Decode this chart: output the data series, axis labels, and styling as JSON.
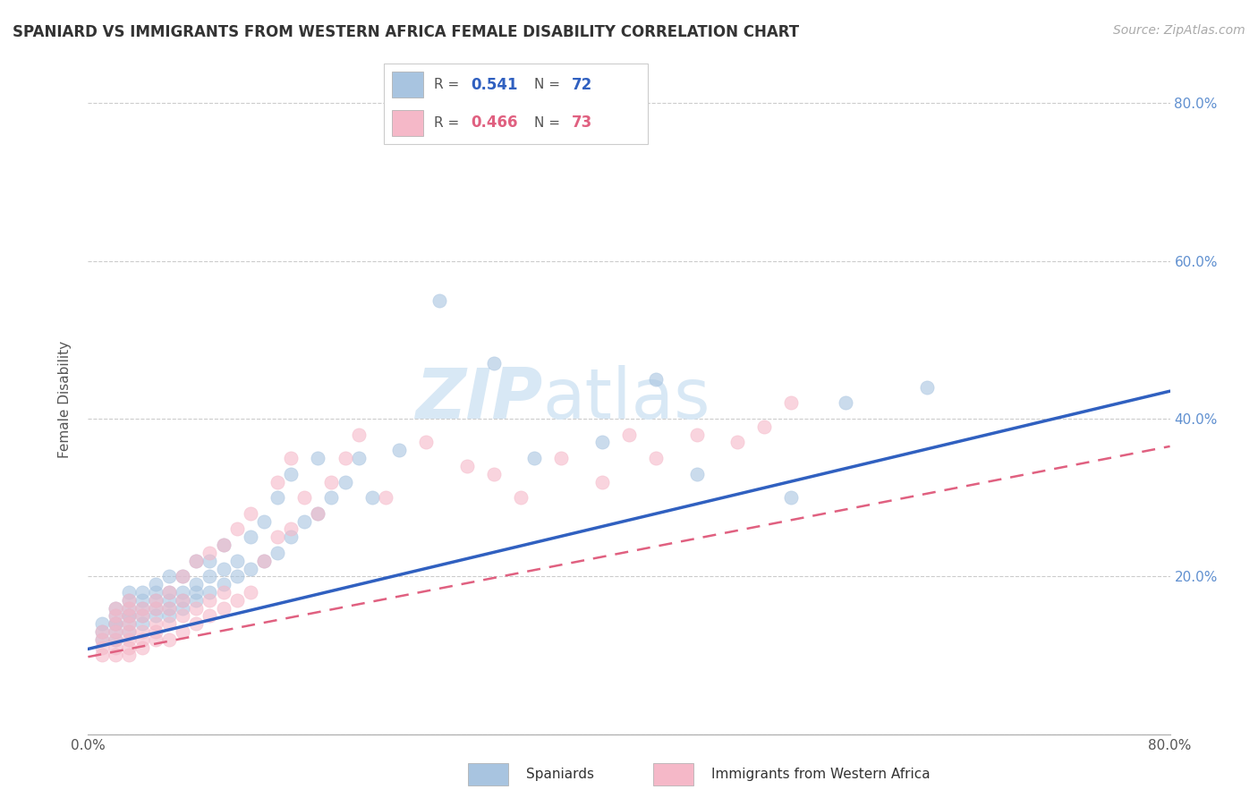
{
  "title": "SPANIARD VS IMMIGRANTS FROM WESTERN AFRICA FEMALE DISABILITY CORRELATION CHART",
  "source": "Source: ZipAtlas.com",
  "ylabel": "Female Disability",
  "xlim": [
    0.0,
    0.8
  ],
  "ylim": [
    0.0,
    0.85
  ],
  "spaniards_R": 0.541,
  "spaniards_N": 72,
  "immigrants_R": 0.466,
  "immigrants_N": 73,
  "spaniards_color": "#a8c4e0",
  "immigrants_color": "#f5b8c8",
  "spaniards_line_color": "#3060c0",
  "immigrants_line_color": "#e06080",
  "right_tick_color": "#6090d0",
  "watermark_color": "#d8e8f5",
  "spaniards_x": [
    0.01,
    0.01,
    0.01,
    0.02,
    0.02,
    0.02,
    0.02,
    0.02,
    0.02,
    0.03,
    0.03,
    0.03,
    0.03,
    0.03,
    0.03,
    0.03,
    0.04,
    0.04,
    0.04,
    0.04,
    0.04,
    0.05,
    0.05,
    0.05,
    0.05,
    0.05,
    0.06,
    0.06,
    0.06,
    0.06,
    0.06,
    0.07,
    0.07,
    0.07,
    0.07,
    0.08,
    0.08,
    0.08,
    0.08,
    0.09,
    0.09,
    0.09,
    0.1,
    0.1,
    0.1,
    0.11,
    0.11,
    0.12,
    0.12,
    0.13,
    0.13,
    0.14,
    0.14,
    0.15,
    0.15,
    0.16,
    0.17,
    0.17,
    0.18,
    0.19,
    0.2,
    0.21,
    0.23,
    0.26,
    0.3,
    0.33,
    0.38,
    0.42,
    0.45,
    0.52,
    0.56,
    0.62
  ],
  "spaniards_y": [
    0.12,
    0.13,
    0.14,
    0.12,
    0.13,
    0.14,
    0.14,
    0.15,
    0.16,
    0.13,
    0.14,
    0.15,
    0.15,
    0.16,
    0.17,
    0.18,
    0.14,
    0.15,
    0.16,
    0.17,
    0.18,
    0.15,
    0.16,
    0.17,
    0.18,
    0.19,
    0.15,
    0.16,
    0.17,
    0.18,
    0.2,
    0.16,
    0.17,
    0.18,
    0.2,
    0.17,
    0.18,
    0.19,
    0.22,
    0.18,
    0.2,
    0.22,
    0.19,
    0.21,
    0.24,
    0.2,
    0.22,
    0.21,
    0.25,
    0.22,
    0.27,
    0.23,
    0.3,
    0.25,
    0.33,
    0.27,
    0.28,
    0.35,
    0.3,
    0.32,
    0.35,
    0.3,
    0.36,
    0.55,
    0.47,
    0.35,
    0.37,
    0.45,
    0.33,
    0.3,
    0.42,
    0.44
  ],
  "immigrants_x": [
    0.01,
    0.01,
    0.01,
    0.01,
    0.02,
    0.02,
    0.02,
    0.02,
    0.02,
    0.02,
    0.02,
    0.03,
    0.03,
    0.03,
    0.03,
    0.03,
    0.03,
    0.03,
    0.03,
    0.04,
    0.04,
    0.04,
    0.04,
    0.04,
    0.05,
    0.05,
    0.05,
    0.05,
    0.05,
    0.06,
    0.06,
    0.06,
    0.06,
    0.07,
    0.07,
    0.07,
    0.07,
    0.08,
    0.08,
    0.08,
    0.09,
    0.09,
    0.09,
    0.1,
    0.1,
    0.1,
    0.11,
    0.11,
    0.12,
    0.12,
    0.13,
    0.14,
    0.14,
    0.15,
    0.15,
    0.16,
    0.17,
    0.18,
    0.19,
    0.2,
    0.22,
    0.25,
    0.28,
    0.3,
    0.32,
    0.35,
    0.38,
    0.4,
    0.42,
    0.45,
    0.48,
    0.5,
    0.52
  ],
  "immigrants_y": [
    0.1,
    0.11,
    0.12,
    0.13,
    0.1,
    0.11,
    0.12,
    0.13,
    0.14,
    0.15,
    0.16,
    0.1,
    0.11,
    0.12,
    0.13,
    0.14,
    0.15,
    0.16,
    0.17,
    0.11,
    0.12,
    0.13,
    0.15,
    0.16,
    0.12,
    0.13,
    0.14,
    0.16,
    0.17,
    0.12,
    0.14,
    0.16,
    0.18,
    0.13,
    0.15,
    0.17,
    0.2,
    0.14,
    0.16,
    0.22,
    0.15,
    0.17,
    0.23,
    0.16,
    0.18,
    0.24,
    0.17,
    0.26,
    0.18,
    0.28,
    0.22,
    0.25,
    0.32,
    0.26,
    0.35,
    0.3,
    0.28,
    0.32,
    0.35,
    0.38,
    0.3,
    0.37,
    0.34,
    0.33,
    0.3,
    0.35,
    0.32,
    0.38,
    0.35,
    0.38,
    0.37,
    0.39,
    0.42
  ],
  "sp_line_x": [
    0.0,
    0.8
  ],
  "sp_line_y": [
    0.108,
    0.435
  ],
  "im_line_x": [
    0.0,
    0.8
  ],
  "im_line_y": [
    0.098,
    0.365
  ]
}
